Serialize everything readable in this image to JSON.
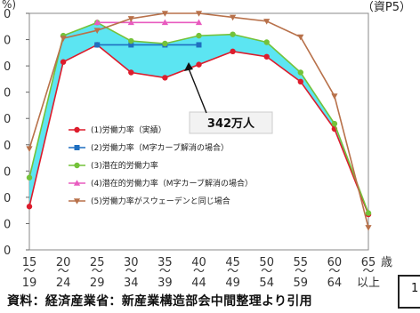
{
  "header": {
    "unit_fragment": "%)",
    "ref": "（資P5）"
  },
  "source": "資料：経済産業省：新産業構造部会中間整理より引用",
  "page_number": "1",
  "callout": {
    "label": "342万人"
  },
  "chart_data": {
    "type": "line",
    "ylim": [
      0,
      90
    ],
    "y_ticks": [
      "0",
      "0",
      "0",
      "0",
      "0",
      "0",
      "0",
      "0",
      "0",
      "0"
    ],
    "x": [
      {
        "top": "15",
        "bottom": "19"
      },
      {
        "top": "20",
        "bottom": "24"
      },
      {
        "top": "25",
        "bottom": "29"
      },
      {
        "top": "30",
        "bottom": "34"
      },
      {
        "top": "35",
        "bottom": "39"
      },
      {
        "top": "40",
        "bottom": "44"
      },
      {
        "top": "45",
        "bottom": "49"
      },
      {
        "top": "50",
        "bottom": "54"
      },
      {
        "top": "55",
        "bottom": "59"
      },
      {
        "top": "60",
        "bottom": "64"
      },
      {
        "top": "65",
        "bottom": "以上"
      }
    ],
    "x_unit": "歳",
    "fill_between_series": [
      0,
      2
    ],
    "fill_color": "#40e0f0",
    "series": [
      {
        "name": "(1)労働力率（実績）",
        "color": "#dd1c2c",
        "marker": "circle",
        "values": [
          16.5,
          71.5,
          78,
          67.5,
          65.5,
          70.5,
          75.5,
          73.5,
          64,
          46,
          13.5
        ]
      },
      {
        "name": "(2)労働力率（M字カーブ解消の場合）",
        "color": "#1f6fc0",
        "marker": "square",
        "values": [
          null,
          null,
          78,
          78,
          78,
          78,
          null,
          null,
          null,
          null,
          null
        ]
      },
      {
        "name": "(3)潜在的労働力率",
        "color": "#74c23a",
        "marker": "circle",
        "values": [
          27.5,
          81.5,
          86.5,
          79.5,
          78.5,
          81.5,
          82,
          79,
          67.5,
          48,
          14
        ]
      },
      {
        "name": "(4)潜在的労働力率（M字カーブ解消の場合）",
        "color": "#e85bbf",
        "marker": "triangle",
        "values": [
          null,
          null,
          86.5,
          86.5,
          86.5,
          86.5,
          null,
          null,
          null,
          null,
          null
        ]
      },
      {
        "name": "(5)労働力率がスウェーデンと同じ場合",
        "color": "#b8714a",
        "marker": "triangle-down",
        "values": [
          38.5,
          80.5,
          83.5,
          88,
          90,
          90,
          88.5,
          87,
          81,
          58.5,
          8.5
        ]
      }
    ]
  }
}
